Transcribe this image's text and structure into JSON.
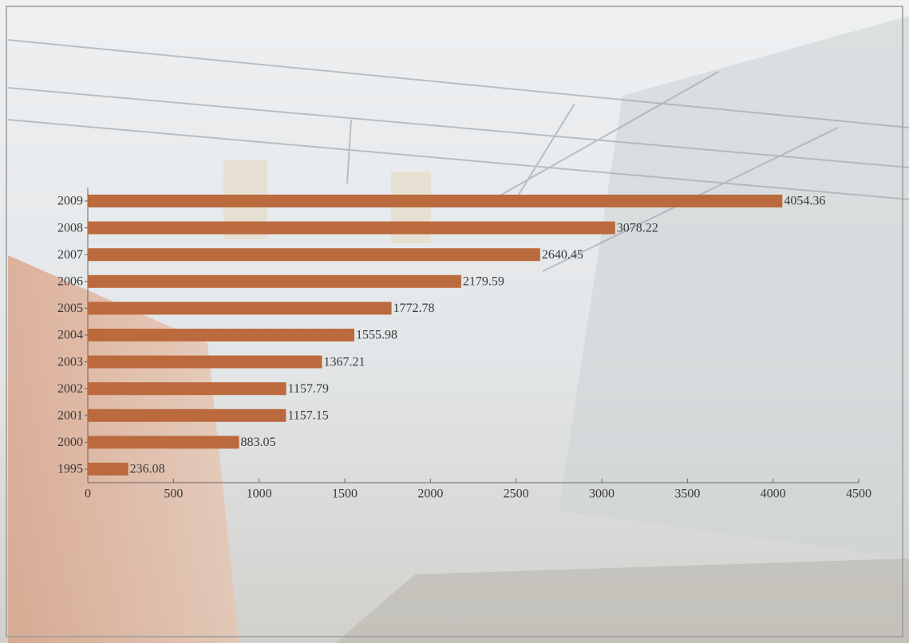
{
  "chart_data": {
    "type": "hbar",
    "categories": [
      "2009",
      "2008",
      "2007",
      "2006",
      "2005",
      "2004",
      "2003",
      "2002",
      "2001",
      "2000",
      "1995"
    ],
    "values": [
      4054.36,
      3078.22,
      2640.45,
      2179.59,
      1772.78,
      1555.98,
      1367.21,
      1157.79,
      1157.15,
      883.05,
      236.08
    ],
    "color": "#bb6a3e",
    "xlim": [
      0,
      4500
    ],
    "xticks": [
      0,
      500,
      1000,
      1500,
      2000,
      2500,
      3000,
      3500,
      4000,
      4500
    ]
  }
}
